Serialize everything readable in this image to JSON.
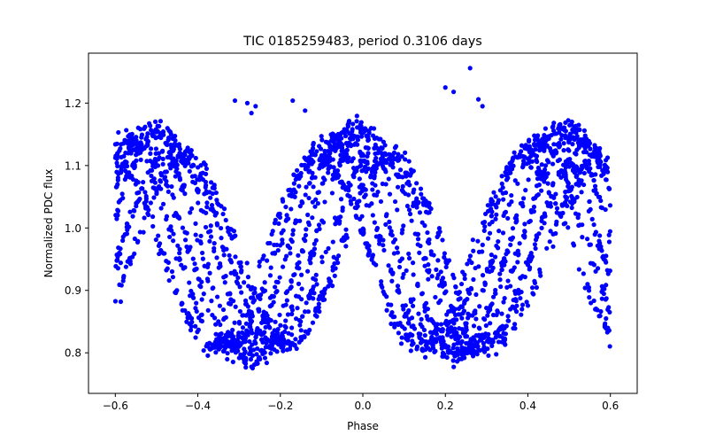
{
  "chart_data": {
    "type": "scatter",
    "title": "TIC 0185259483, period 0.3106 days",
    "xlabel": "Phase",
    "ylabel": "Normalized PDC flux",
    "xlim": [
      -0.665,
      0.665
    ],
    "ylim": [
      0.735,
      1.28
    ],
    "xticks": [
      -0.6,
      -0.4,
      -0.2,
      0.0,
      0.2,
      0.4,
      0.6
    ],
    "xtick_labels": [
      "−0.6",
      "−0.4",
      "−0.2",
      "0.0",
      "0.2",
      "0.4",
      "0.6"
    ],
    "yticks": [
      0.8,
      0.9,
      1.0,
      1.1,
      1.2
    ],
    "ytick_labels": [
      "0.8",
      "0.9",
      "1.0",
      "1.1",
      "1.2"
    ],
    "marker_color": "#0000ff",
    "grid": false,
    "series": [
      {
        "name": "light curve",
        "tracks": [
          {
            "phase_shift": 0.0,
            "amplitude": 0.185,
            "offset": 0.975
          },
          {
            "phase_shift": 0.06,
            "amplitude": 0.175,
            "offset": 0.98
          },
          {
            "phase_shift": -0.06,
            "amplitude": 0.17,
            "offset": 0.975
          },
          {
            "phase_shift": 0.12,
            "amplitude": 0.16,
            "offset": 0.97
          },
          {
            "phase_shift": -0.12,
            "amplitude": 0.165,
            "offset": 0.975
          },
          {
            "phase_shift": 0.18,
            "amplitude": 0.15,
            "offset": 0.965
          },
          {
            "phase_shift": -0.18,
            "amplitude": 0.15,
            "offset": 0.96
          }
        ],
        "phase_min": -0.6,
        "phase_max": 0.6,
        "points_per_track": 420,
        "cycle_length": 0.5,
        "scatter_sigma": 0.012,
        "outliers": [
          {
            "x": -0.31,
            "y": 1.204
          },
          {
            "x": -0.28,
            "y": 1.2
          },
          {
            "x": -0.26,
            "y": 1.195
          },
          {
            "x": -0.27,
            "y": 1.184
          },
          {
            "x": -0.17,
            "y": 1.204
          },
          {
            "x": -0.14,
            "y": 1.188
          },
          {
            "x": 0.2,
            "y": 1.225
          },
          {
            "x": 0.22,
            "y": 1.218
          },
          {
            "x": 0.26,
            "y": 1.256
          },
          {
            "x": 0.28,
            "y": 1.206
          },
          {
            "x": 0.29,
            "y": 1.195
          }
        ]
      }
    ]
  }
}
